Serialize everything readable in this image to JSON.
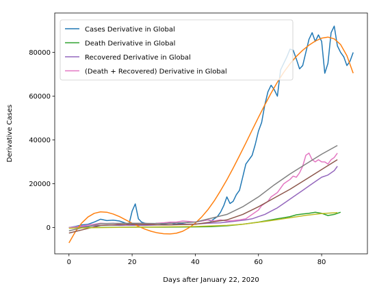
{
  "chart_data": {
    "type": "line",
    "title": "",
    "xlabel": "Days after January 22, 2020",
    "ylabel": "Derivative Cases",
    "xlim": [
      -4.5,
      94.5
    ],
    "ylim": [
      -12000,
      98000
    ],
    "xticks": [
      0,
      20,
      40,
      60,
      80
    ],
    "yticks": [
      0,
      20000,
      40000,
      60000,
      80000
    ],
    "grid": false,
    "legend_position": "top-left",
    "series": [
      {
        "name": "Cases Derivative in Global",
        "color": "#1f77b4",
        "x": [
          0,
          2,
          4,
          6,
          8,
          10,
          12,
          14,
          16,
          18,
          19,
          20,
          21,
          22,
          23,
          24,
          26,
          28,
          30,
          32,
          34,
          36,
          38,
          40,
          42,
          44,
          45,
          46,
          47,
          48,
          49,
          50,
          51,
          52,
          53,
          54,
          55,
          56,
          57,
          58,
          59,
          60,
          61,
          62,
          63,
          64,
          65,
          66,
          67,
          68,
          69,
          70,
          71,
          72,
          73,
          74,
          75,
          76,
          77,
          78,
          79,
          80,
          81,
          82,
          83,
          84,
          85,
          86,
          87,
          88,
          89,
          90
        ],
        "y": [
          0,
          500,
          1200,
          1500,
          2500,
          3800,
          3200,
          3400,
          3000,
          2000,
          1500,
          7500,
          10800,
          4000,
          2500,
          2000,
          1500,
          2000,
          1500,
          2200,
          1500,
          2000,
          2500,
          2500,
          3000,
          3500,
          3000,
          4000,
          5000,
          7000,
          10000,
          14000,
          11000,
          12000,
          15000,
          17000,
          23000,
          29000,
          31000,
          33000,
          38000,
          44000,
          48000,
          56000,
          62000,
          65000,
          63000,
          60000,
          72000,
          75000,
          78000,
          81500,
          81000,
          77000,
          72500,
          74000,
          80000,
          86000,
          89000,
          85000,
          88000,
          85000,
          70500,
          75000,
          89000,
          92000,
          83000,
          80000,
          78000,
          74000,
          76000,
          80000
        ]
      },
      {
        "name": "Death Derivative in Global",
        "color": "#2ca02c",
        "x": [
          0,
          10,
          20,
          30,
          40,
          45,
          50,
          55,
          60,
          62,
          64,
          66,
          68,
          70,
          72,
          74,
          76,
          78,
          80,
          82,
          84,
          86
        ],
        "y": [
          0,
          100,
          200,
          200,
          300,
          400,
          800,
          1500,
          2500,
          3000,
          3500,
          4000,
          4500,
          5000,
          5800,
          6200,
          6500,
          7000,
          6500,
          5500,
          6000,
          7000
        ]
      },
      {
        "name": "Recovered Derivative in Global",
        "color": "#9467bd",
        "x": [
          0,
          4,
          8,
          12,
          16,
          20,
          24,
          28,
          32,
          36,
          40,
          44,
          48,
          52,
          56,
          58,
          60,
          62,
          64,
          66,
          68,
          70,
          72,
          74,
          76,
          78,
          80,
          82,
          84,
          85
        ],
        "y": [
          0,
          400,
          900,
          1200,
          1000,
          1100,
          1000,
          1200,
          1300,
          1500,
          1600,
          2000,
          2200,
          2800,
          3500,
          4000,
          5000,
          6000,
          7500,
          9000,
          11000,
          13000,
          15000,
          17000,
          19000,
          21000,
          23000,
          24000,
          26000,
          28000
        ]
      },
      {
        "name": "(Death + Recovered) Derivative in Global",
        "color": "#e377c2",
        "x": [
          0,
          2,
          4,
          6,
          8,
          10,
          12,
          14,
          16,
          18,
          20,
          22,
          24,
          26,
          28,
          30,
          32,
          34,
          36,
          38,
          40,
          42,
          44,
          46,
          48,
          50,
          52,
          54,
          56,
          58,
          60,
          61,
          62,
          63,
          64,
          65,
          66,
          67,
          68,
          69,
          70,
          71,
          72,
          73,
          74,
          75,
          76,
          77,
          78,
          79,
          80,
          81,
          82,
          83,
          84,
          85
        ],
        "y": [
          0,
          300,
          700,
          1200,
          1500,
          2000,
          1800,
          2000,
          1500,
          1200,
          1500,
          2000,
          1800,
          1500,
          2000,
          2200,
          2500,
          2500,
          3000,
          2800,
          2500,
          3000,
          3500,
          3000,
          3500,
          3000,
          3200,
          3500,
          4000,
          6000,
          8000,
          10000,
          11000,
          12000,
          14000,
          15000,
          16000,
          18000,
          20000,
          21000,
          22000,
          23500,
          23000,
          25000,
          28000,
          33000,
          34000,
          31000,
          30000,
          31000,
          30000,
          30000,
          29000,
          31000,
          32000,
          34000
        ]
      },
      {
        "name": "",
        "color": "#ff7f0e",
        "x": [
          0,
          2,
          4,
          6,
          8,
          10,
          12,
          14,
          16,
          18,
          20,
          22,
          24,
          26,
          28,
          30,
          32,
          34,
          36,
          38,
          40,
          42,
          44,
          46,
          48,
          50,
          52,
          54,
          56,
          58,
          60,
          62,
          64,
          66,
          68,
          70,
          72,
          74,
          76,
          78,
          80,
          82,
          84,
          86,
          88,
          90
        ],
        "y": [
          -7000,
          -2000,
          2000,
          4800,
          6500,
          7200,
          7000,
          6200,
          5000,
          3500,
          2000,
          600,
          -700,
          -1700,
          -2400,
          -2800,
          -2900,
          -2600,
          -1700,
          -100,
          2000,
          4800,
          8200,
          12200,
          16800,
          21800,
          27200,
          32800,
          38600,
          44500,
          50300,
          56000,
          61400,
          66400,
          70900,
          74800,
          78200,
          81000,
          83300,
          85200,
          86500,
          87000,
          86200,
          83600,
          78500,
          70500
        ]
      },
      {
        "name": "",
        "color": "#8c564b",
        "x": [
          0,
          10,
          20,
          30,
          40,
          50,
          55,
          60,
          65,
          70,
          75,
          80,
          85
        ],
        "y": [
          -2500,
          1000,
          1500,
          1200,
          1500,
          3500,
          6000,
          9500,
          13500,
          17500,
          22000,
          26500,
          31000
        ]
      },
      {
        "name": "",
        "color": "#7f7f7f",
        "x": [
          0,
          10,
          20,
          30,
          40,
          50,
          55,
          60,
          65,
          70,
          75,
          80,
          85
        ],
        "y": [
          -1500,
          1800,
          2000,
          1800,
          2500,
          6000,
          9500,
          14000,
          19500,
          24500,
          29000,
          33500,
          37500
        ]
      },
      {
        "name": "",
        "color": "#bcbd22",
        "x": [
          0,
          10,
          20,
          30,
          40,
          50,
          55,
          60,
          65,
          70,
          75,
          80,
          85
        ],
        "y": [
          -300,
          0,
          200,
          300,
          500,
          1000,
          1500,
          2400,
          3400,
          4500,
          5600,
          6400,
          6800
        ]
      }
    ]
  }
}
